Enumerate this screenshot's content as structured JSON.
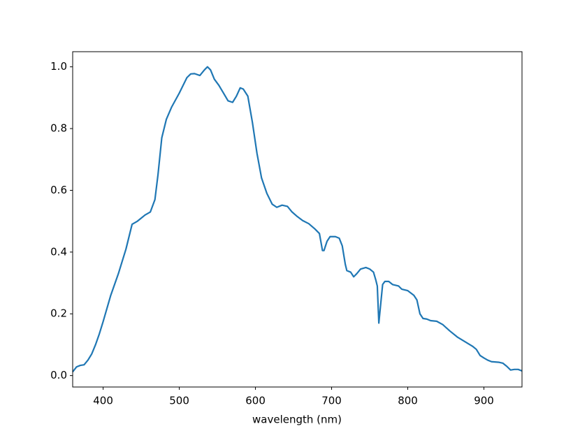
{
  "chart_data": {
    "type": "line",
    "xlabel": "wavelength (nm)",
    "x": [
      360,
      365,
      370,
      375,
      380,
      385,
      390,
      395,
      400,
      410,
      420,
      430,
      438,
      445,
      450,
      455,
      462,
      468,
      472,
      477,
      483,
      490,
      500,
      510,
      515,
      520,
      527,
      533,
      537,
      541,
      546,
      552,
      558,
      564,
      570,
      575,
      580,
      584,
      590,
      596,
      602,
      608,
      615,
      622,
      628,
      635,
      642,
      648,
      655,
      662,
      670,
      678,
      684,
      688,
      690,
      694,
      698,
      705,
      710,
      714,
      718,
      720,
      725,
      729,
      733,
      738,
      745,
      750,
      755,
      758,
      760,
      762,
      764,
      767,
      770,
      775,
      780,
      788,
      792,
      800,
      808,
      812,
      816,
      820,
      825,
      830,
      838,
      846,
      855,
      865,
      875,
      885,
      890,
      895,
      900,
      905,
      910,
      920,
      925,
      930,
      935,
      940,
      945,
      950
    ],
    "series": [
      {
        "color": "#1f77b4",
        "values": [
          0.012,
          0.028,
          0.033,
          0.035,
          0.05,
          0.07,
          0.1,
          0.135,
          0.175,
          0.26,
          0.33,
          0.41,
          0.49,
          0.5,
          0.51,
          0.52,
          0.53,
          0.57,
          0.65,
          0.77,
          0.83,
          0.87,
          0.915,
          0.965,
          0.977,
          0.978,
          0.972,
          0.99,
          1.0,
          0.99,
          0.96,
          0.94,
          0.915,
          0.89,
          0.885,
          0.905,
          0.932,
          0.928,
          0.905,
          0.82,
          0.72,
          0.64,
          0.59,
          0.555,
          0.545,
          0.552,
          0.548,
          0.53,
          0.515,
          0.502,
          0.492,
          0.475,
          0.46,
          0.405,
          0.405,
          0.435,
          0.45,
          0.45,
          0.445,
          0.42,
          0.36,
          0.34,
          0.335,
          0.32,
          0.33,
          0.345,
          0.35,
          0.345,
          0.335,
          0.31,
          0.29,
          0.17,
          0.22,
          0.295,
          0.305,
          0.305,
          0.295,
          0.29,
          0.28,
          0.275,
          0.26,
          0.245,
          0.2,
          0.185,
          0.183,
          0.178,
          0.176,
          0.165,
          0.145,
          0.125,
          0.11,
          0.095,
          0.085,
          0.065,
          0.057,
          0.05,
          0.045,
          0.043,
          0.04,
          0.03,
          0.018,
          0.02,
          0.02,
          0.015
        ]
      }
    ],
    "xlim": [
      360,
      950
    ],
    "xticks": [
      400,
      500,
      600,
      700,
      800,
      900
    ],
    "ylim": [
      -0.037,
      1.049
    ],
    "yticks": [
      {
        "value": 0,
        "label": "0.0"
      },
      0.2,
      0.4,
      0.6,
      0.8,
      {
        "value": 1,
        "label": "1.0"
      }
    ]
  }
}
